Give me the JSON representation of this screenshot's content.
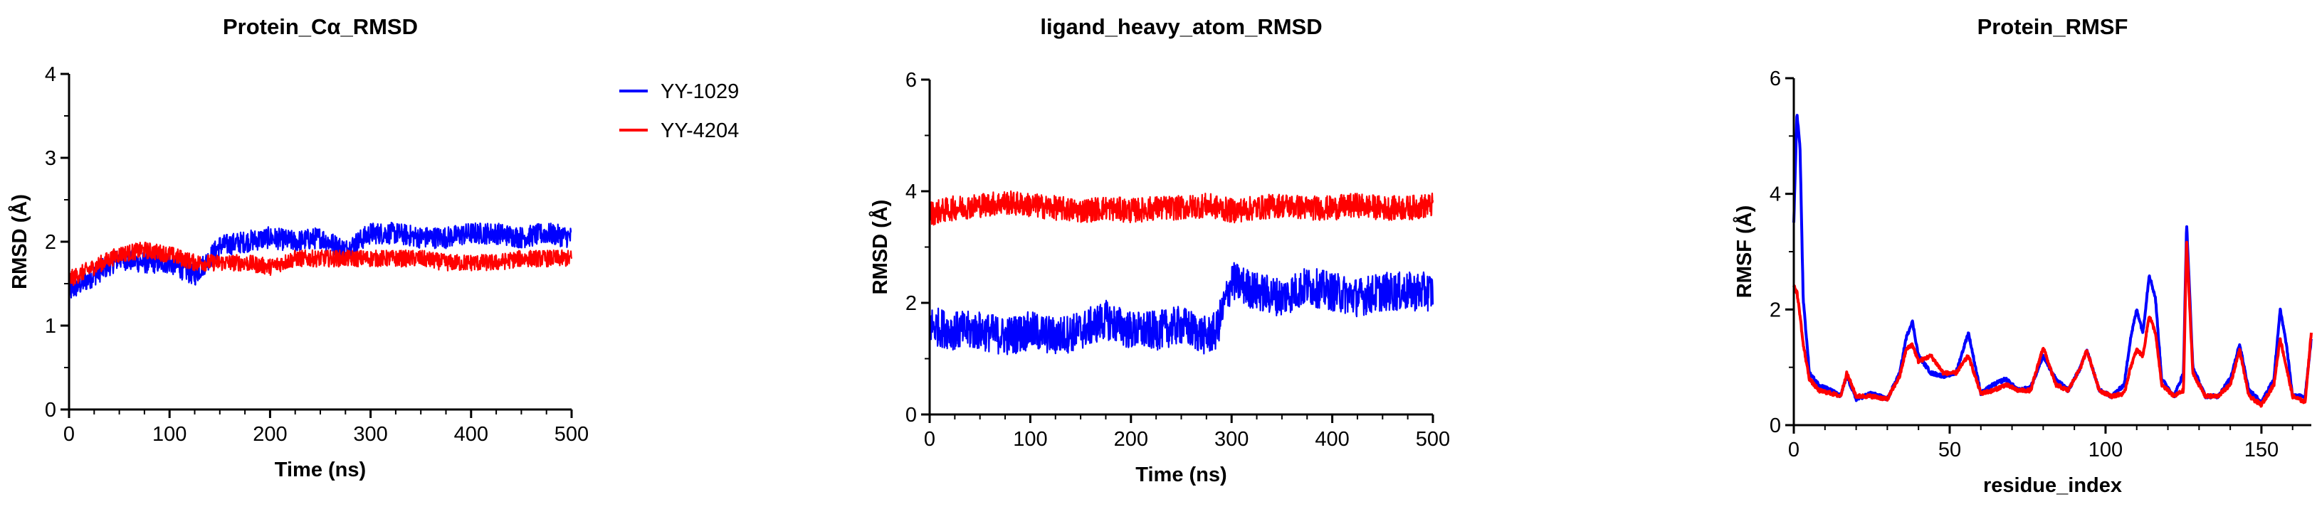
{
  "chart_data": [
    {
      "type": "line",
      "title": "Protein_Cα_RMSD",
      "xlabel": "Time (ns)",
      "ylabel": "RMSD (Å)",
      "xlim": [
        0,
        500
      ],
      "ylim": [
        0,
        4
      ],
      "xticks": [
        0,
        100,
        200,
        300,
        400,
        500
      ],
      "yticks": [
        0,
        1,
        2,
        3,
        4
      ],
      "series": [
        {
          "name": "YY-1029",
          "color": "#0000ff",
          "x": [
            0,
            25,
            50,
            75,
            100,
            125,
            150,
            175,
            200,
            225,
            250,
            275,
            300,
            325,
            350,
            375,
            400,
            425,
            450,
            475,
            500
          ],
          "y": [
            1.4,
            1.6,
            1.8,
            1.75,
            1.75,
            1.6,
            1.95,
            2.0,
            2.05,
            2.0,
            2.05,
            1.9,
            2.1,
            2.1,
            2.05,
            2.05,
            2.1,
            2.1,
            2.05,
            2.1,
            2.05
          ],
          "noise": 0.13
        },
        {
          "name": "YY-4204",
          "color": "#ff0000",
          "x": [
            0,
            25,
            50,
            75,
            100,
            125,
            150,
            175,
            200,
            225,
            250,
            275,
            300,
            325,
            350,
            375,
            400,
            425,
            450,
            475,
            500
          ],
          "y": [
            1.55,
            1.7,
            1.85,
            1.9,
            1.85,
            1.75,
            1.75,
            1.75,
            1.7,
            1.8,
            1.8,
            1.8,
            1.8,
            1.8,
            1.8,
            1.75,
            1.75,
            1.75,
            1.8,
            1.8,
            1.8
          ],
          "noise": 0.1
        }
      ],
      "legend": {
        "position": "right",
        "entries": [
          "YY-1029",
          "YY-4204"
        ]
      }
    },
    {
      "type": "line",
      "title": "ligand_heavy_atom_RMSD",
      "xlabel": "Time (ns)",
      "ylabel": "RMSD (Å)",
      "xlim": [
        0,
        500
      ],
      "ylim": [
        0,
        6
      ],
      "xticks": [
        0,
        100,
        200,
        300,
        400,
        500
      ],
      "yticks": [
        0,
        2,
        4,
        6
      ],
      "series": [
        {
          "name": "YY-1029",
          "color": "#0000ff",
          "x": [
            0,
            25,
            50,
            75,
            100,
            125,
            150,
            175,
            200,
            225,
            250,
            275,
            285,
            300,
            325,
            350,
            375,
            400,
            425,
            450,
            475,
            500
          ],
          "y": [
            1.6,
            1.5,
            1.5,
            1.4,
            1.5,
            1.4,
            1.5,
            1.7,
            1.5,
            1.5,
            1.6,
            1.4,
            1.5,
            2.4,
            2.2,
            2.1,
            2.3,
            2.2,
            2.1,
            2.2,
            2.2,
            2.2
          ],
          "noise": 0.35
        },
        {
          "name": "YY-4204",
          "color": "#ff0000",
          "x": [
            0,
            25,
            50,
            75,
            100,
            125,
            150,
            175,
            200,
            225,
            250,
            275,
            300,
            325,
            350,
            375,
            400,
            425,
            450,
            475,
            500
          ],
          "y": [
            3.6,
            3.7,
            3.75,
            3.8,
            3.75,
            3.7,
            3.65,
            3.7,
            3.65,
            3.7,
            3.7,
            3.75,
            3.65,
            3.7,
            3.75,
            3.7,
            3.7,
            3.75,
            3.7,
            3.7,
            3.75
          ],
          "noise": 0.22
        }
      ]
    },
    {
      "type": "line",
      "title": "Protein_RMSF",
      "xlabel": "residue_index",
      "ylabel": "RMSF (Å)",
      "xlim": [
        0,
        166
      ],
      "ylim": [
        0,
        6
      ],
      "xticks": [
        0,
        50,
        100,
        150
      ],
      "yticks": [
        0,
        2,
        4,
        6
      ],
      "series": [
        {
          "name": "YY-1029",
          "color": "#0000ff",
          "x": [
            0,
            1,
            2,
            3,
            5,
            8,
            12,
            15,
            17,
            20,
            25,
            30,
            34,
            36,
            38,
            40,
            44,
            48,
            52,
            56,
            60,
            64,
            68,
            72,
            76,
            80,
            84,
            88,
            92,
            94,
            98,
            102,
            106,
            108,
            110,
            112,
            114,
            116,
            118,
            122,
            125,
            126,
            128,
            132,
            136,
            140,
            143,
            146,
            150,
            154,
            156,
            158,
            160,
            162,
            164,
            166
          ],
          "y": [
            3.5,
            5.4,
            4.8,
            2.2,
            0.9,
            0.7,
            0.6,
            0.5,
            0.85,
            0.45,
            0.55,
            0.45,
            0.9,
            1.5,
            1.8,
            1.2,
            0.9,
            0.85,
            0.9,
            1.6,
            0.55,
            0.7,
            0.8,
            0.6,
            0.65,
            1.2,
            0.8,
            0.6,
            1.0,
            1.3,
            0.6,
            0.5,
            0.7,
            1.5,
            2.0,
            1.6,
            2.6,
            2.2,
            0.8,
            0.5,
            0.9,
            3.5,
            1.0,
            0.5,
            0.5,
            0.8,
            1.4,
            0.6,
            0.4,
            0.8,
            2.0,
            1.4,
            0.5,
            0.5,
            0.5,
            1.5
          ],
          "noise": 0.03
        },
        {
          "name": "YY-4204",
          "color": "#ff0000",
          "x": [
            0,
            1,
            2,
            3,
            5,
            8,
            12,
            15,
            17,
            20,
            25,
            30,
            34,
            36,
            38,
            40,
            44,
            48,
            52,
            56,
            60,
            64,
            68,
            72,
            76,
            80,
            84,
            88,
            92,
            94,
            98,
            102,
            106,
            108,
            110,
            112,
            114,
            116,
            118,
            122,
            125,
            126,
            128,
            132,
            136,
            140,
            143,
            146,
            150,
            154,
            156,
            158,
            160,
            162,
            164,
            166
          ],
          "y": [
            2.4,
            2.3,
            1.9,
            1.4,
            0.8,
            0.6,
            0.55,
            0.5,
            0.9,
            0.5,
            0.5,
            0.45,
            0.85,
            1.3,
            1.4,
            1.1,
            1.2,
            0.9,
            0.9,
            1.2,
            0.55,
            0.6,
            0.7,
            0.6,
            0.6,
            1.35,
            0.7,
            0.6,
            1.0,
            1.3,
            0.6,
            0.5,
            0.55,
            1.0,
            1.3,
            1.2,
            1.9,
            1.6,
            0.7,
            0.5,
            0.6,
            3.2,
            0.9,
            0.5,
            0.5,
            0.7,
            1.3,
            0.5,
            0.35,
            0.7,
            1.5,
            1.0,
            0.5,
            0.45,
            0.4,
            1.6
          ],
          "noise": 0.03
        }
      ]
    }
  ]
}
